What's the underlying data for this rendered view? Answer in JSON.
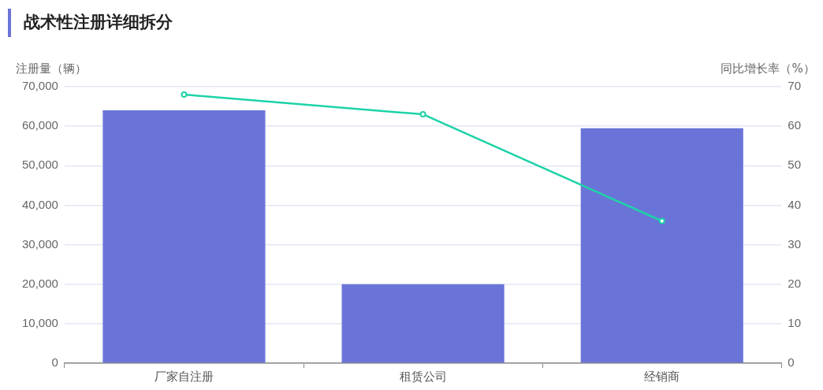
{
  "chart_data": {
    "type": "bar",
    "title": "战术性注册详细拆分",
    "ylabel": "注册量（辆）",
    "y2label": "同比增长率（%）",
    "categories": [
      "厂家自注册",
      "租赁公司",
      "经销商"
    ],
    "series": [
      {
        "color": "#6a74d8",
        "values": [
          64000,
          20000,
          59500
        ]
      },
      {
        "type": "line",
        "axis": "y2",
        "color": "#1dd3a7",
        "values": [
          68,
          63,
          36
        ]
      }
    ],
    "ylim": [
      0,
      70000
    ],
    "yticks": [
      0,
      {
        "value": 10000,
        "label": "10,000"
      },
      {
        "value": 20000,
        "label": "20,000"
      },
      {
        "value": 30000,
        "label": "30,000"
      },
      {
        "value": 40000,
        "label": "40,000"
      },
      {
        "value": 50000,
        "label": "50,000"
      },
      {
        "value": 60000,
        "label": "60,000"
      },
      {
        "value": 70000,
        "label": "70,000"
      }
    ],
    "y2lim": [
      0,
      70
    ],
    "y2ticks": [
      0,
      10,
      20,
      30,
      40,
      50,
      60,
      70
    ],
    "grid": "y",
    "legend": false,
    "marker": "circle",
    "line_style": "solid"
  }
}
